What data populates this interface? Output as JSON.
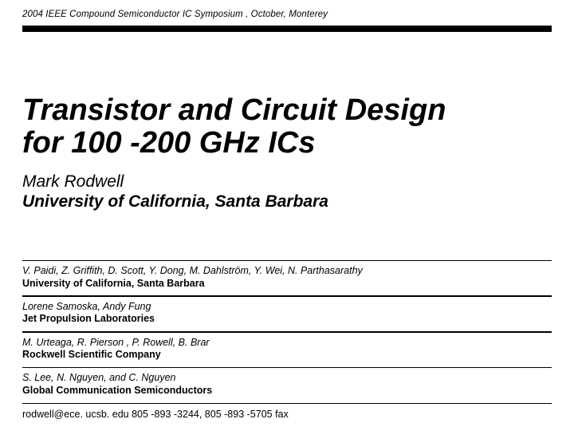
{
  "conference": "2004 IEEE Compound Semiconductor IC Symposium , October, Monterey",
  "title_line1": "Transistor and Circuit Design",
  "title_line2": "for 100 -200 GHz ICs",
  "presenter_name": "Mark Rodwell",
  "presenter_affil": "University of California, Santa Barbara",
  "blocks": [
    {
      "names": "V. Paidi, Z. Griffith, D. Scott, Y. Dong,  M. Dahlström, Y. Wei, N. Parthasarathy",
      "affil": "University of California, Santa Barbara"
    },
    {
      "names": "Lorene Samoska, Andy Fung",
      "affil": "Jet Propulsion Laboratories"
    },
    {
      "names": "M. Urteaga, R. Pierson , P. Rowell, B. Brar",
      "affil": "Rockwell Scientific Company"
    },
    {
      "names": "S. Lee, N. Nguyen, and C. Nguyen",
      "affil": "Global Communication Semiconductors"
    }
  ],
  "contact": "rodwell@ece. ucsb. edu   805 -893 -3244, 805 -893 -5705 fax"
}
